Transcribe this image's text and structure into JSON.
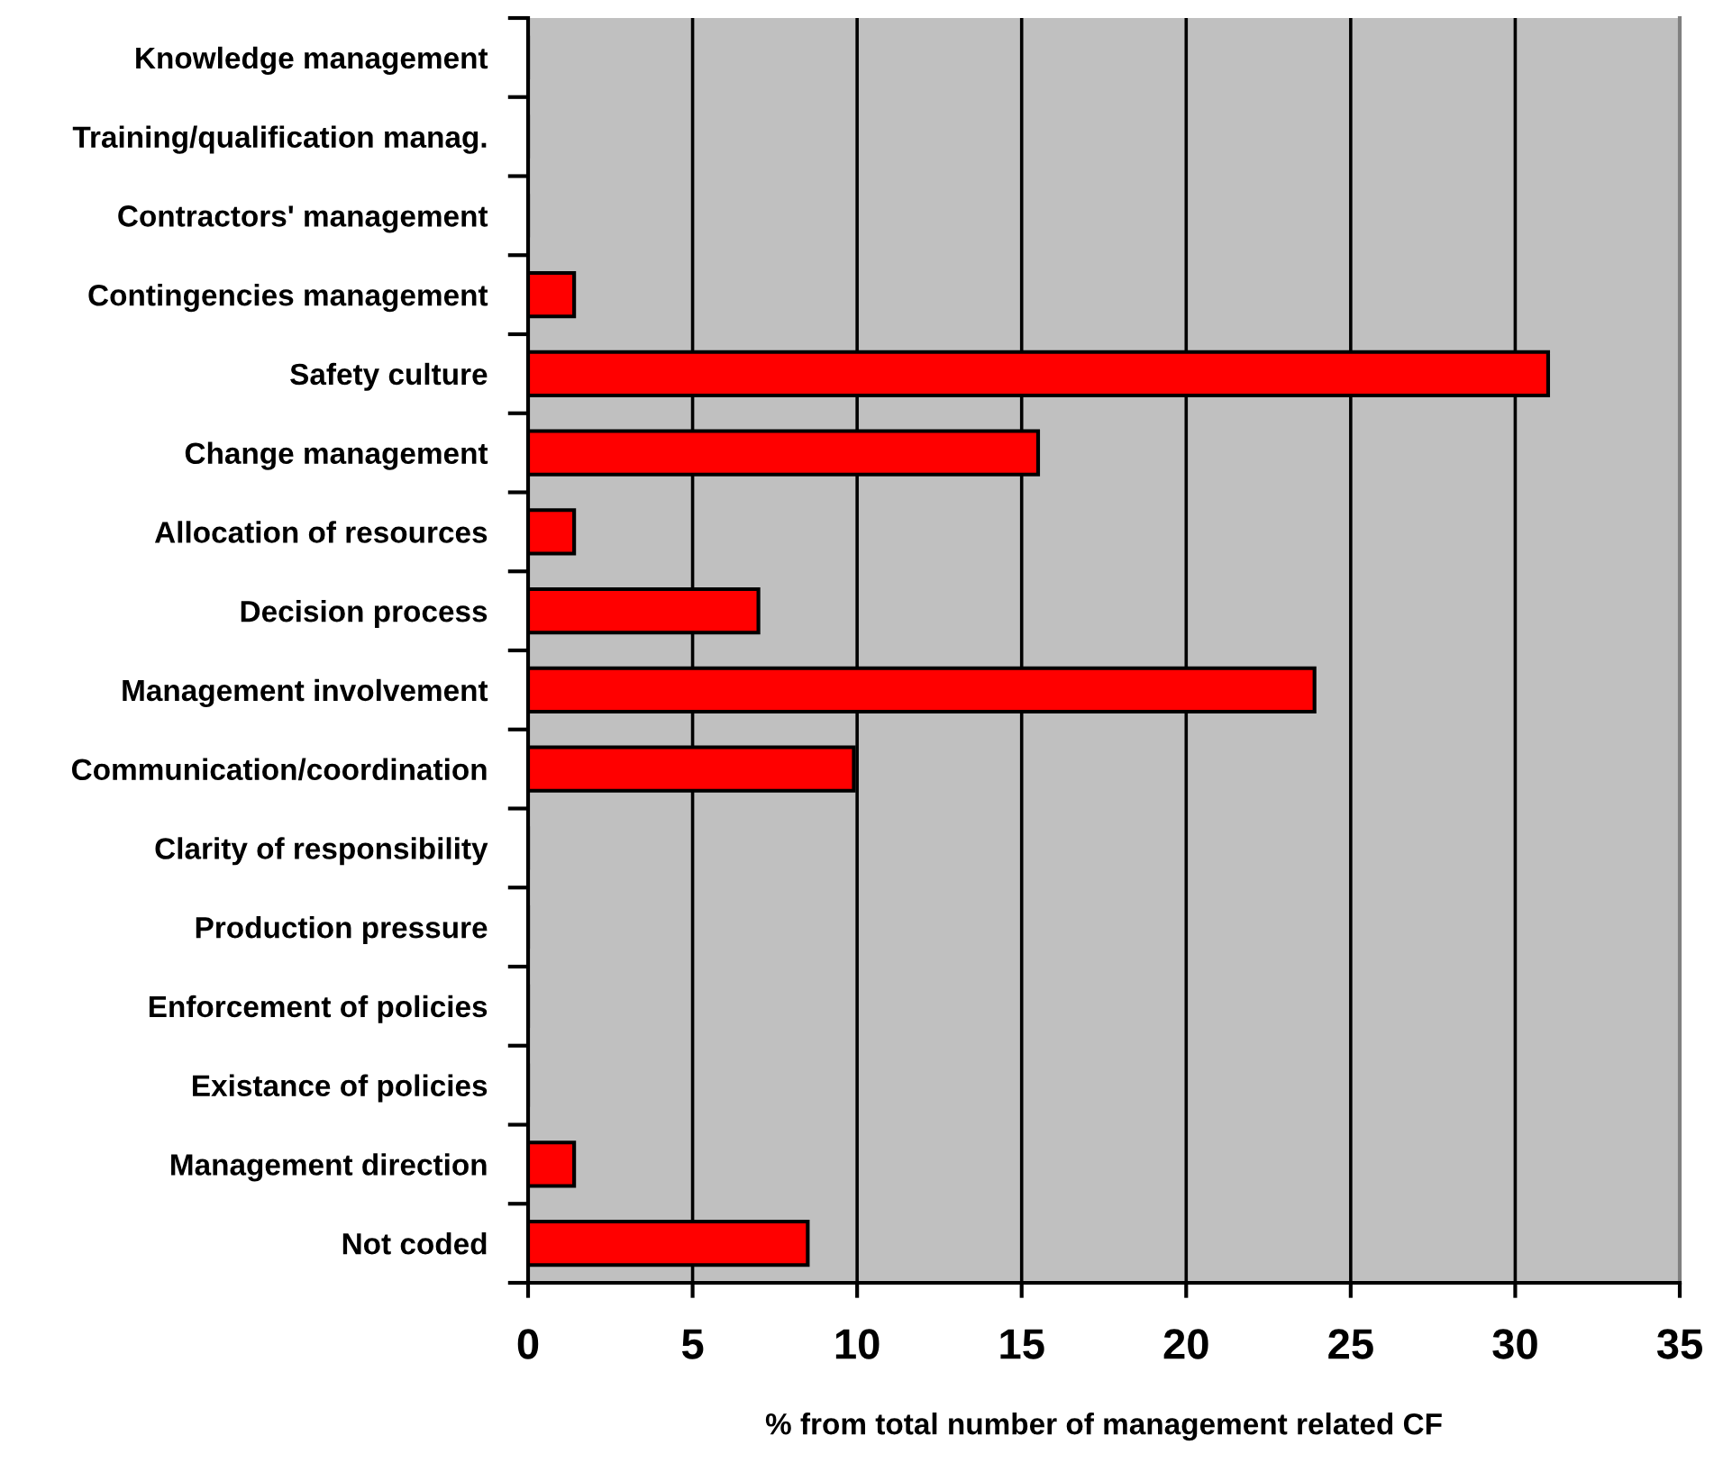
{
  "chart_data": {
    "type": "bar",
    "orientation": "horizontal",
    "xlabel": "% from total number of management related CF",
    "categories": [
      "Knowledge management",
      "Training/qualification manag.",
      "Contractors' management",
      "Contingencies management",
      "Safety culture",
      "Change management",
      "Allocation of resources",
      "Decision process",
      "Management involvement",
      "Communication/coordination",
      "Clarity of responsibility",
      "Production pressure",
      "Enforcement of policies",
      "Existance of policies",
      "Management direction",
      "Not coded"
    ],
    "values": [
      0,
      0,
      0,
      1.4,
      31,
      15.5,
      1.4,
      7,
      23.9,
      9.9,
      0,
      0,
      0,
      0,
      1.4,
      8.5
    ],
    "color": "#ff0000",
    "xlim": [
      0,
      35
    ],
    "xticks": [
      0,
      5,
      10,
      15,
      20,
      25,
      30,
      35
    ],
    "grid": "x"
  }
}
